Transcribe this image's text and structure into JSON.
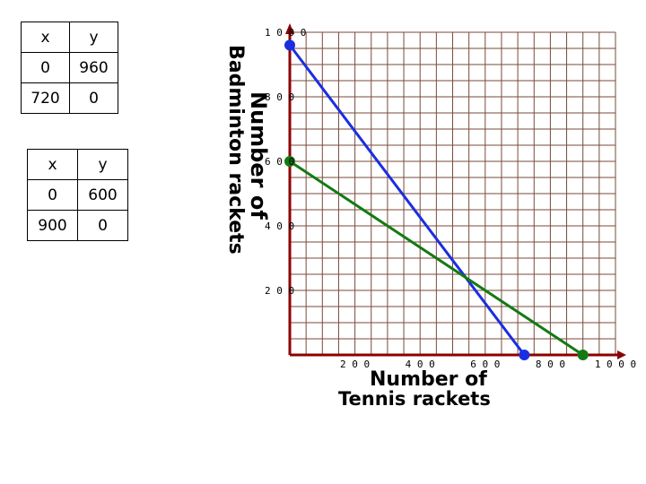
{
  "tables": [
    {
      "headers": [
        "x",
        "y"
      ],
      "rows": [
        [
          "0",
          "960"
        ],
        [
          "720",
          "0"
        ]
      ]
    },
    {
      "headers": [
        "x",
        "y"
      ],
      "rows": [
        [
          "0",
          "600"
        ],
        [
          "900",
          "0"
        ]
      ]
    }
  ],
  "chart_data": {
    "type": "line",
    "xlabel": [
      "Number of",
      "Tennis rackets"
    ],
    "ylabel": [
      "Number of",
      "Badminton rackets"
    ],
    "xlim": [
      0,
      1000
    ],
    "ylim": [
      0,
      1000
    ],
    "grid": true,
    "grid_step": 50,
    "x_ticks": [
      200,
      400,
      600,
      800,
      1000
    ],
    "y_ticks": [
      200,
      400,
      600,
      800,
      1000
    ],
    "series": [
      {
        "color": "#1a2ee0",
        "x": [
          0,
          720
        ],
        "y": [
          960,
          0
        ]
      },
      {
        "color": "#137a13",
        "x": [
          0,
          900
        ],
        "y": [
          600,
          0
        ]
      }
    ]
  }
}
